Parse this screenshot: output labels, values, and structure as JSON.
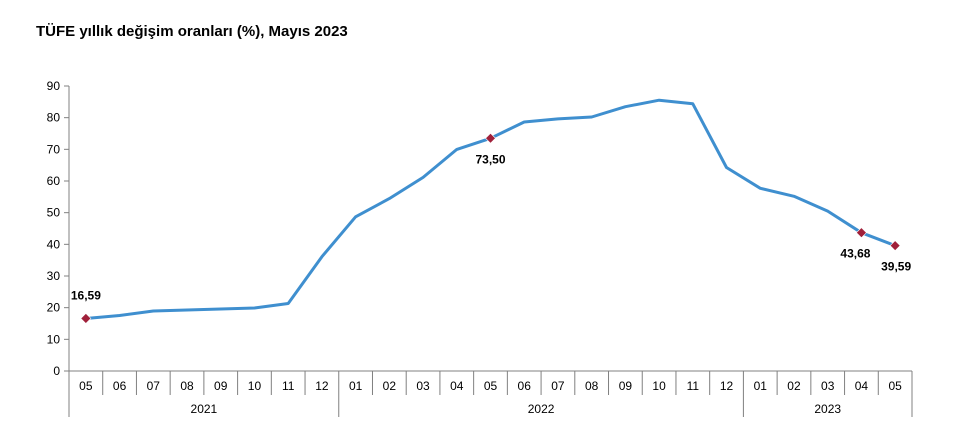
{
  "chart_data": {
    "type": "line",
    "title": "TÜFE yıllık değişim oranları (%), Mayıs 2023",
    "xlabel": "",
    "ylabel": "",
    "ylim": [
      0,
      90
    ],
    "yticks": [
      0,
      10,
      20,
      30,
      40,
      50,
      60,
      70,
      80,
      90
    ],
    "grid": false,
    "legend": "none",
    "categories": [
      "05",
      "06",
      "07",
      "08",
      "09",
      "10",
      "11",
      "12",
      "01",
      "02",
      "03",
      "04",
      "05",
      "06",
      "07",
      "08",
      "09",
      "10",
      "11",
      "12",
      "01",
      "02",
      "03",
      "04",
      "05"
    ],
    "year_groups": [
      {
        "label": "2021",
        "start": 0,
        "end": 7
      },
      {
        "label": "2022",
        "start": 8,
        "end": 19
      },
      {
        "label": "2023",
        "start": 20,
        "end": 24
      }
    ],
    "series": [
      {
        "color": "#3f8fcf",
        "values": [
          16.59,
          17.53,
          18.95,
          19.25,
          19.58,
          19.89,
          21.31,
          36.08,
          48.69,
          54.44,
          61.14,
          69.97,
          73.5,
          78.62,
          79.6,
          80.21,
          83.45,
          85.51,
          84.39,
          64.27,
          57.68,
          55.18,
          50.51,
          43.68,
          39.59
        ]
      }
    ],
    "annotations": [
      {
        "index": 0,
        "text": "16,59",
        "position": "above"
      },
      {
        "index": 12,
        "text": "73,50",
        "position": "below"
      },
      {
        "index": 23,
        "text": "43,68",
        "position": "below"
      },
      {
        "index": 24,
        "text": "39,59",
        "position": "below"
      }
    ],
    "marker_color": "#a0203a"
  }
}
